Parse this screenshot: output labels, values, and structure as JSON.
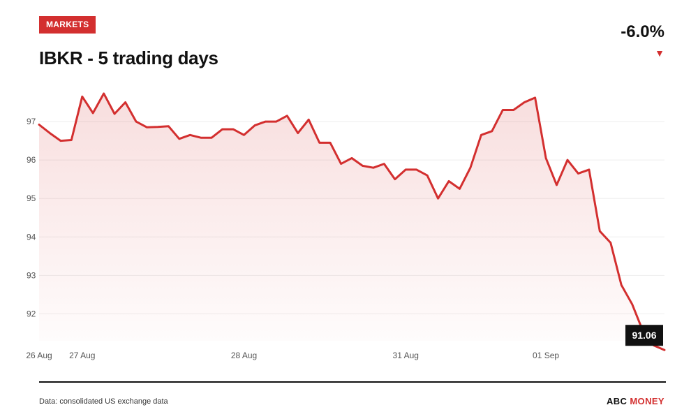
{
  "badge": "MARKETS",
  "title": "IBKR - 5 trading days",
  "change": {
    "value": "-6.0%",
    "direction": "down",
    "arrow": "▼"
  },
  "source": "Data: consolidated US exchange data",
  "brand": {
    "part1": "ABC",
    "part2": "MONEY"
  },
  "colors": {
    "accent": "#d32f2f",
    "line": "#d32f2f",
    "grid": "#eeeeee",
    "text": "#111111"
  },
  "chart_data": {
    "type": "area",
    "title": "IBKR - 5 trading days",
    "ylim": [
      91.3,
      97.8
    ],
    "yticks": [
      92,
      93,
      94,
      95,
      96,
      97
    ],
    "grid": true,
    "xticks": [
      {
        "label": "26 Aug",
        "index": 0
      },
      {
        "label": "27 Aug",
        "index": 4
      },
      {
        "label": "28 Aug",
        "index": 19
      },
      {
        "label": "31 Aug",
        "index": 34
      },
      {
        "label": "01 Sep",
        "index": 47
      }
    ],
    "last_value_label": "91.06",
    "values": [
      96.92,
      96.7,
      96.5,
      96.52,
      97.65,
      97.22,
      97.73,
      97.2,
      97.5,
      97.0,
      96.85,
      96.86,
      96.88,
      96.55,
      96.65,
      96.58,
      96.58,
      96.8,
      96.8,
      96.65,
      96.9,
      97.0,
      97.0,
      97.15,
      96.7,
      97.05,
      96.45,
      96.45,
      95.9,
      96.05,
      95.85,
      95.8,
      95.9,
      95.5,
      95.75,
      95.75,
      95.6,
      95.0,
      95.45,
      95.25,
      95.8,
      96.65,
      96.75,
      97.3,
      97.3,
      97.5,
      97.62,
      96.05,
      95.35,
      96.0,
      95.65,
      95.75,
      94.15,
      93.85,
      92.75,
      92.25,
      91.55,
      91.18,
      91.06
    ]
  }
}
